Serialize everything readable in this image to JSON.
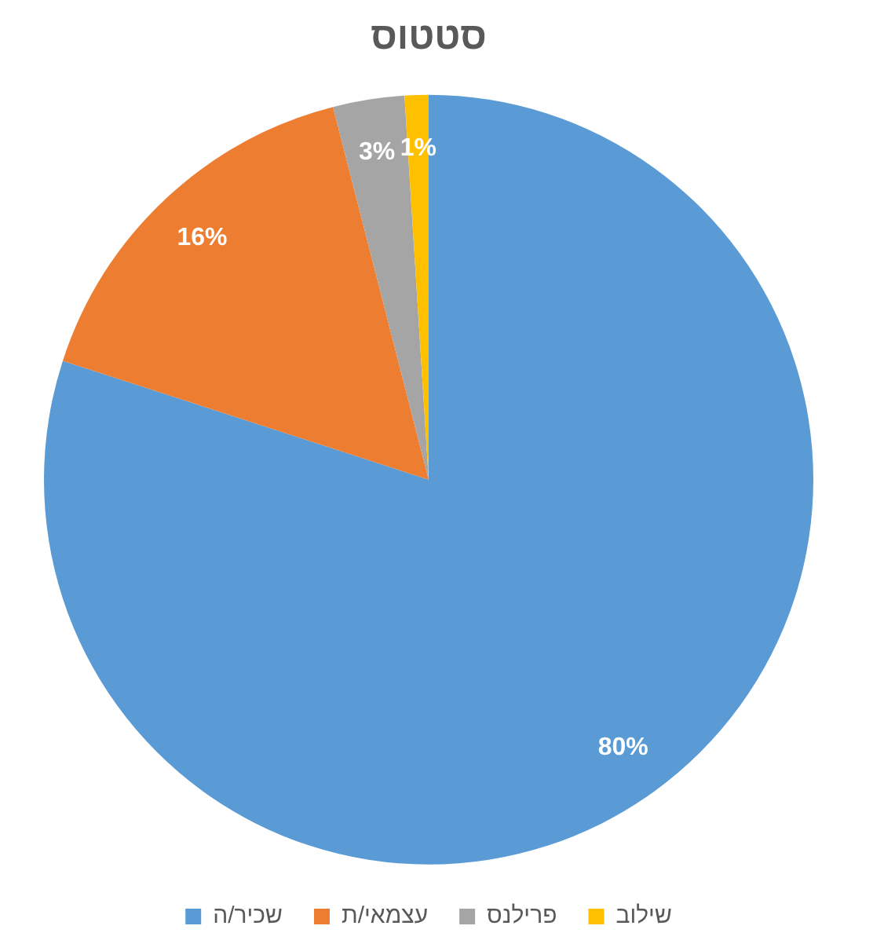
{
  "chart_data": {
    "type": "pie",
    "title": "סטטוס",
    "categories": [
      "שכיר/ה",
      "עצמאי/ת",
      "פרילנס",
      "שילוב"
    ],
    "values": [
      80,
      16,
      3,
      1
    ],
    "colors": [
      "#5b9bd5",
      "#ed7d31",
      "#a5a5a5",
      "#ffc000"
    ],
    "value_labels": [
      "80%",
      "16%",
      "3%",
      "1%"
    ],
    "legend": "bottom"
  }
}
